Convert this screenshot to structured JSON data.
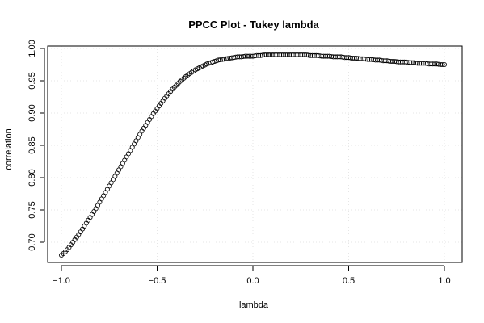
{
  "chart_data": {
    "type": "scatter",
    "title": "PPCC Plot - Tukey lambda",
    "xlabel": "lambda",
    "ylabel": "correlation",
    "xlim": [
      -1.0,
      1.0
    ],
    "ylim": [
      0.68,
      0.99
    ],
    "xticks": [
      -1.0,
      -0.5,
      0.0,
      0.5,
      1.0
    ],
    "xtick_labels": [
      "−1.0",
      "−0.5",
      "0.0",
      "0.5",
      "1.0"
    ],
    "yticks": [
      0.7,
      0.75,
      0.8,
      0.85,
      0.9,
      0.95,
      1.0
    ],
    "ytick_labels": [
      "0.70",
      "0.75",
      "0.80",
      "0.85",
      "0.90",
      "0.95",
      "1.00"
    ],
    "grid": true,
    "marker": "open-circle",
    "series": [
      {
        "x": [
          -1.0,
          -0.98,
          -0.96,
          -0.94,
          -0.92,
          -0.9,
          -0.88,
          -0.86,
          -0.84,
          -0.82,
          -0.8,
          -0.78,
          -0.76,
          -0.74,
          -0.72,
          -0.7,
          -0.68,
          -0.66,
          -0.64,
          -0.62,
          -0.6,
          -0.58,
          -0.56,
          -0.54,
          -0.52,
          -0.5,
          -0.48,
          -0.46,
          -0.44,
          -0.42,
          -0.4,
          -0.38,
          -0.36,
          -0.34,
          -0.32,
          -0.3,
          -0.28,
          -0.26,
          -0.24,
          -0.22,
          -0.2,
          -0.18,
          -0.16,
          -0.14,
          -0.12,
          -0.1,
          -0.08,
          -0.06,
          -0.04,
          -0.02,
          0.0,
          0.02,
          0.04,
          0.06,
          0.08,
          0.1,
          0.12,
          0.14,
          0.16,
          0.18,
          0.2,
          0.22,
          0.24,
          0.26,
          0.28,
          0.3,
          0.32,
          0.34,
          0.36,
          0.38,
          0.4,
          0.42,
          0.44,
          0.46,
          0.48,
          0.5,
          0.52,
          0.54,
          0.56,
          0.58,
          0.6,
          0.62,
          0.64,
          0.66,
          0.68,
          0.7,
          0.72,
          0.74,
          0.76,
          0.78,
          0.8,
          0.82,
          0.84,
          0.86,
          0.88,
          0.9,
          0.92,
          0.94,
          0.96,
          0.98,
          1.0
        ],
        "y": [
          0.68,
          0.685,
          0.692,
          0.7,
          0.708,
          0.716,
          0.725,
          0.734,
          0.743,
          0.752,
          0.762,
          0.772,
          0.782,
          0.792,
          0.802,
          0.812,
          0.822,
          0.832,
          0.842,
          0.852,
          0.862,
          0.872,
          0.881,
          0.89,
          0.899,
          0.907,
          0.915,
          0.923,
          0.93,
          0.937,
          0.943,
          0.949,
          0.954,
          0.959,
          0.963,
          0.967,
          0.97,
          0.973,
          0.976,
          0.978,
          0.98,
          0.982,
          0.983,
          0.984,
          0.985,
          0.986,
          0.987,
          0.987,
          0.988,
          0.988,
          0.988,
          0.989,
          0.989,
          0.99,
          0.99,
          0.99,
          0.99,
          0.99,
          0.99,
          0.99,
          0.99,
          0.99,
          0.99,
          0.99,
          0.99,
          0.989,
          0.989,
          0.989,
          0.988,
          0.988,
          0.988,
          0.987,
          0.987,
          0.987,
          0.986,
          0.986,
          0.985,
          0.985,
          0.984,
          0.984,
          0.983,
          0.983,
          0.982,
          0.982,
          0.981,
          0.981,
          0.98,
          0.98,
          0.979,
          0.979,
          0.979,
          0.978,
          0.978,
          0.977,
          0.977,
          0.977,
          0.976,
          0.976,
          0.976,
          0.975,
          0.975
        ]
      }
    ]
  }
}
